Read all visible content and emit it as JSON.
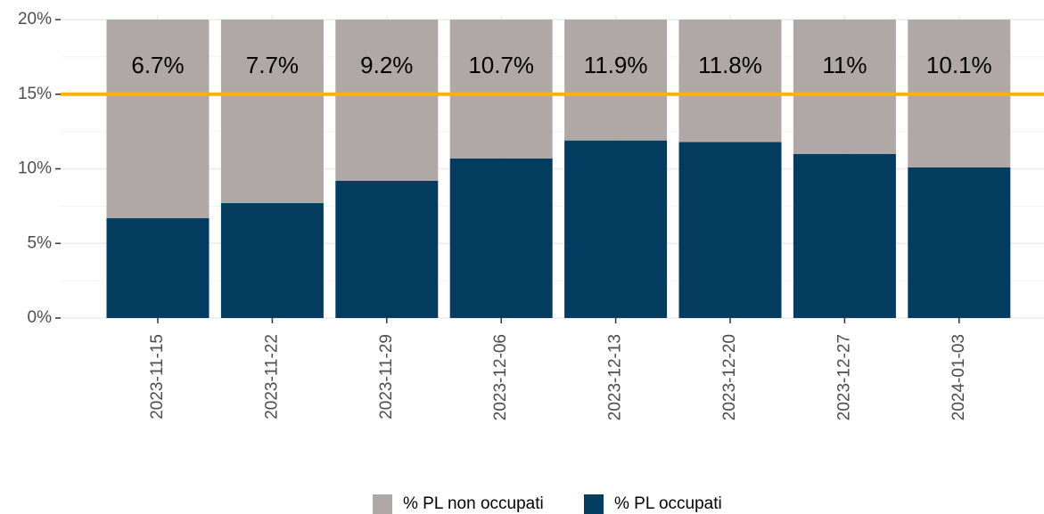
{
  "chart_data": {
    "type": "stacked_bar",
    "categories": [
      "2023-11-15",
      "2023-11-22",
      "2023-11-29",
      "2023-12-06",
      "2023-12-13",
      "2023-12-20",
      "2023-12-27",
      "2024-01-03"
    ],
    "series": [
      {
        "name": "% PL non occupati",
        "color": "#b0a8a7",
        "values": [
          13.3,
          12.3,
          10.8,
          9.3,
          8.1,
          8.2,
          9,
          9.9
        ]
      },
      {
        "name": "% PL occupati",
        "color": "#033c5e",
        "values": [
          6.7,
          7.7,
          9.2,
          10.7,
          11.9,
          11.8,
          11,
          10.1
        ],
        "value_labels": [
          "6.7%",
          "7.7%",
          "9.2%",
          "10.7%",
          "11.9%",
          "11.8%",
          "11%",
          "10.1%"
        ]
      }
    ],
    "ylim": [
      0,
      20
    ],
    "yticks": [
      {
        "value": 0,
        "label": "0%"
      },
      {
        "value": 5,
        "label": "5%"
      },
      {
        "value": 10,
        "label": "10%"
      },
      {
        "value": 15,
        "label": "15%"
      },
      {
        "value": 20,
        "label": "20%"
      }
    ],
    "reference_line": {
      "value": 15,
      "color": "#f5b400"
    },
    "grid": true,
    "legend": "bottom"
  }
}
